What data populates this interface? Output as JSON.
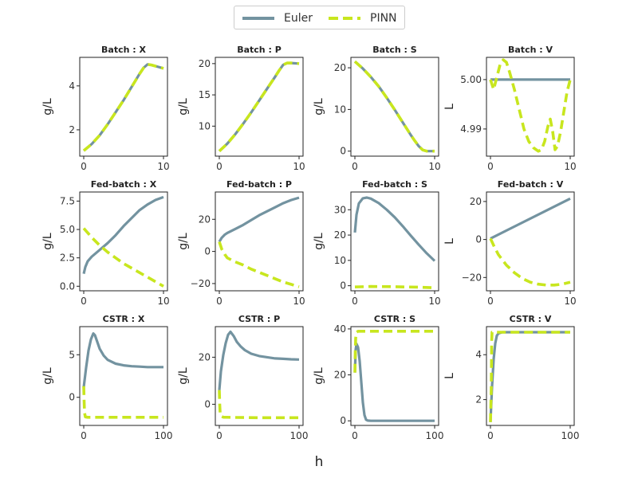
{
  "figure": {
    "xlabel": "h",
    "legend": {
      "placement": "top-center",
      "entries": [
        "Euler",
        "PINN"
      ]
    }
  },
  "colors": {
    "euler": "#7393a0",
    "pinn": "#c8e61e"
  },
  "chart_data": [
    {
      "type": "line",
      "title": "Batch : X",
      "ylabel": "g/L",
      "xlim": [
        -0.5,
        10.5
      ],
      "ylim": [
        0.8,
        5.3
      ],
      "xticks": [
        0,
        10
      ],
      "yticks": [
        2,
        4
      ],
      "series": [
        {
          "name": "Euler",
          "x": [
            0,
            1,
            2,
            3,
            4,
            5,
            6,
            7,
            7.5,
            8,
            8.5,
            9,
            10
          ],
          "y": [
            1.05,
            1.35,
            1.75,
            2.25,
            2.8,
            3.35,
            3.95,
            4.55,
            4.82,
            4.98,
            4.95,
            4.9,
            4.8
          ]
        },
        {
          "name": "PINN",
          "x": [
            0,
            1,
            2,
            3,
            4,
            5,
            6,
            7,
            7.5,
            8,
            8.5,
            9,
            10
          ],
          "y": [
            1.05,
            1.35,
            1.75,
            2.25,
            2.8,
            3.35,
            3.95,
            4.55,
            4.82,
            4.98,
            4.95,
            4.9,
            4.8
          ]
        }
      ]
    },
    {
      "type": "line",
      "title": "Batch : P",
      "ylabel": "g/L",
      "xlim": [
        -0.5,
        10.5
      ],
      "ylim": [
        5.2,
        21
      ],
      "xticks": [
        0,
        10
      ],
      "yticks": [
        10,
        15,
        20
      ],
      "series": [
        {
          "name": "Euler",
          "x": [
            0,
            1,
            2,
            3,
            4,
            5,
            6,
            7,
            7.5,
            8,
            8.5,
            9,
            10
          ],
          "y": [
            6,
            7.2,
            8.7,
            10.4,
            12.2,
            14.1,
            16,
            17.9,
            18.9,
            19.8,
            20.1,
            20.1,
            20
          ]
        },
        {
          "name": "PINN",
          "x": [
            0,
            1,
            2,
            3,
            4,
            5,
            6,
            7,
            7.5,
            8,
            8.5,
            9,
            10
          ],
          "y": [
            6,
            7.2,
            8.7,
            10.4,
            12.2,
            14.1,
            16,
            17.9,
            18.9,
            19.8,
            20.1,
            20.1,
            20
          ]
        }
      ]
    },
    {
      "type": "line",
      "title": "Batch : S",
      "ylabel": "g/L",
      "xlim": [
        -0.5,
        10.5
      ],
      "ylim": [
        -1.2,
        22.5
      ],
      "xticks": [
        0,
        10
      ],
      "yticks": [
        0,
        10,
        20
      ],
      "series": [
        {
          "name": "Euler",
          "x": [
            0,
            1,
            2,
            3,
            4,
            5,
            6,
            7,
            7.5,
            8,
            8.5,
            9,
            10
          ],
          "y": [
            21.5,
            19.8,
            17.8,
            15.5,
            12.8,
            9.9,
            6.9,
            3.9,
            2.5,
            1.2,
            0.3,
            0,
            0
          ]
        },
        {
          "name": "PINN",
          "x": [
            0,
            1,
            2,
            3,
            4,
            5,
            6,
            7,
            7.5,
            8,
            8.5,
            9,
            10
          ],
          "y": [
            21.5,
            19.8,
            17.8,
            15.5,
            12.8,
            9.9,
            6.9,
            3.9,
            2.5,
            1.2,
            0.3,
            0,
            0
          ]
        }
      ]
    },
    {
      "type": "line",
      "title": "Batch : V",
      "ylabel": "L",
      "xlim": [
        -0.5,
        10.5
      ],
      "ylim": [
        4.9845,
        5.0045
      ],
      "xticks": [
        0,
        10
      ],
      "yticks": [
        4.99,
        5.0
      ],
      "series": [
        {
          "name": "Euler",
          "x": [
            0,
            10
          ],
          "y": [
            5.0,
            5.0
          ]
        },
        {
          "name": "PINN",
          "x": [
            0,
            0.4,
            0.8,
            1.2,
            1.6,
            2,
            2.4,
            3,
            3.6,
            4.2,
            4.8,
            5.4,
            6,
            6.4,
            6.8,
            7.2,
            7.5,
            7.8,
            8.1,
            8.4,
            8.8,
            9.2,
            9.6,
            10
          ],
          "y": [
            5.0,
            4.998,
            5.0005,
            5.003,
            5.004,
            5.0035,
            5.0015,
            4.998,
            4.994,
            4.99,
            4.9875,
            4.9862,
            4.9855,
            4.9858,
            4.9875,
            4.9905,
            4.992,
            4.9895,
            4.9858,
            4.9865,
            4.9895,
            4.9935,
            4.9975,
            5.0
          ]
        }
      ]
    },
    {
      "type": "line",
      "title": "Fed-batch : X",
      "ylabel": "g/L",
      "xlim": [
        -0.5,
        10.5
      ],
      "ylim": [
        -0.4,
        8.3
      ],
      "xticks": [
        0,
        10
      ],
      "yticks": [
        0.0,
        2.5,
        5.0,
        7.5
      ],
      "series": [
        {
          "name": "Euler",
          "x": [
            0,
            0.2,
            0.5,
            1,
            2,
            3,
            4,
            5,
            6,
            7,
            8,
            9,
            10
          ],
          "y": [
            1.1,
            1.7,
            2.2,
            2.6,
            3.2,
            3.8,
            4.5,
            5.3,
            6.0,
            6.7,
            7.2,
            7.6,
            7.85
          ]
        },
        {
          "name": "PINN",
          "x": [
            0,
            1,
            2,
            3,
            4,
            5,
            6,
            7,
            8,
            9,
            10
          ],
          "y": [
            5.1,
            4.3,
            3.6,
            3.0,
            2.5,
            2.0,
            1.6,
            1.2,
            0.8,
            0.4,
            0.0
          ]
        }
      ]
    },
    {
      "type": "line",
      "title": "Fed-batch : P",
      "ylabel": "g/L",
      "xlim": [
        -0.5,
        10.5
      ],
      "ylim": [
        -24.5,
        37
      ],
      "xticks": [
        0,
        10
      ],
      "yticks": [
        -20,
        0,
        20
      ],
      "series": [
        {
          "name": "Euler",
          "x": [
            0,
            0.3,
            0.7,
            1,
            2,
            3,
            4,
            5,
            6,
            7,
            8,
            9,
            10
          ],
          "y": [
            6,
            8.5,
            10.5,
            11.5,
            14,
            16.5,
            19.5,
            22.5,
            25,
            27.5,
            30,
            32,
            33.5
          ]
        },
        {
          "name": "PINN",
          "x": [
            0,
            0.3,
            0.7,
            1,
            2,
            3,
            4,
            5,
            6,
            7,
            8,
            9,
            10
          ],
          "y": [
            6,
            1.5,
            -2,
            -4,
            -6.5,
            -8.5,
            -11,
            -13,
            -15,
            -17,
            -19,
            -20.5,
            -22
          ]
        }
      ]
    },
    {
      "type": "line",
      "title": "Fed-batch : S",
      "ylabel": "g/L",
      "xlim": [
        -0.5,
        10.5
      ],
      "ylim": [
        -2,
        37
      ],
      "xticks": [
        0,
        10
      ],
      "yticks": [
        0,
        10,
        20,
        30
      ],
      "series": [
        {
          "name": "Euler",
          "x": [
            0,
            0.2,
            0.5,
            1,
            1.5,
            2,
            3,
            4,
            5,
            6,
            7,
            8,
            9,
            10
          ],
          "y": [
            21,
            28,
            32.5,
            34.5,
            34.8,
            34.4,
            32.6,
            30,
            27,
            23.5,
            19.8,
            16.2,
            12.8,
            9.8
          ]
        },
        {
          "name": "PINN",
          "x": [
            0,
            2,
            5,
            8,
            10
          ],
          "y": [
            -0.5,
            -0.3,
            -0.4,
            -0.6,
            -0.8
          ]
        }
      ]
    },
    {
      "type": "line",
      "title": "Fed-batch : V",
      "ylabel": "L",
      "xlim": [
        -0.5,
        10.5
      ],
      "ylim": [
        -27,
        25
      ],
      "xticks": [
        0,
        10
      ],
      "yticks": [
        -20,
        0,
        20
      ],
      "series": [
        {
          "name": "Euler",
          "x": [
            0,
            10
          ],
          "y": [
            0.5,
            21.5
          ]
        },
        {
          "name": "PINN",
          "x": [
            0,
            0.5,
            1,
            2,
            3,
            4,
            5,
            6,
            7,
            8,
            9,
            10
          ],
          "y": [
            0.5,
            -4,
            -8,
            -13.5,
            -17.5,
            -20.5,
            -22.5,
            -23.5,
            -24,
            -24,
            -23.5,
            -22.5
          ]
        }
      ]
    },
    {
      "type": "line",
      "title": "CSTR : X",
      "ylabel": "g/L",
      "xlim": [
        -5,
        105
      ],
      "ylim": [
        -3.3,
        8.3
      ],
      "xticks": [
        0,
        100
      ],
      "yticks": [
        0,
        5
      ],
      "series": [
        {
          "name": "Euler",
          "x": [
            0,
            3,
            6,
            9,
            12,
            14,
            17,
            20,
            25,
            30,
            40,
            50,
            60,
            70,
            80,
            90,
            100
          ],
          "y": [
            1.2,
            3.5,
            5.5,
            6.8,
            7.5,
            7.3,
            6.5,
            5.7,
            4.9,
            4.4,
            3.95,
            3.75,
            3.65,
            3.6,
            3.55,
            3.55,
            3.55
          ]
        },
        {
          "name": "PINN",
          "x": [
            0,
            0.5,
            1,
            2,
            5,
            20,
            50,
            100
          ],
          "y": [
            1.3,
            -0.5,
            -1.8,
            -2.3,
            -2.35,
            -2.35,
            -2.35,
            -2.35
          ]
        }
      ]
    },
    {
      "type": "line",
      "title": "CSTR : P",
      "ylabel": "g/L",
      "xlim": [
        -5,
        105
      ],
      "ylim": [
        -9,
        33
      ],
      "xticks": [
        0,
        100
      ],
      "yticks": [
        0,
        20
      ],
      "series": [
        {
          "name": "Euler",
          "x": [
            0,
            2,
            5,
            8,
            11,
            14,
            18,
            22,
            27,
            32,
            40,
            50,
            60,
            70,
            80,
            90,
            100
          ],
          "y": [
            6,
            14,
            21,
            26,
            29.5,
            30.8,
            29,
            26.5,
            24.5,
            23,
            21.5,
            20.5,
            20,
            19.5,
            19.3,
            19.1,
            19
          ]
        },
        {
          "name": "PINN",
          "x": [
            0,
            0.5,
            1,
            2,
            5,
            20,
            50,
            100
          ],
          "y": [
            6,
            0,
            -3.5,
            -5,
            -5.5,
            -5.6,
            -5.7,
            -5.7
          ]
        }
      ]
    },
    {
      "type": "line",
      "title": "CSTR : S",
      "ylabel": "g/L",
      "xlim": [
        -5,
        105
      ],
      "ylim": [
        -2,
        41
      ],
      "xticks": [
        0,
        100
      ],
      "yticks": [
        0,
        20,
        40
      ],
      "series": [
        {
          "name": "Euler",
          "x": [
            0,
            1,
            2,
            4,
            6,
            8,
            10,
            12,
            14,
            16,
            20,
            50,
            100
          ],
          "y": [
            21,
            31,
            33.5,
            32,
            26,
            17,
            8,
            2.5,
            0.5,
            0.1,
            0,
            0,
            0
          ]
        },
        {
          "name": "PINN",
          "x": [
            0,
            0.5,
            1,
            2,
            4,
            10,
            50,
            100
          ],
          "y": [
            21,
            30,
            36,
            38.5,
            39,
            39,
            39,
            39
          ]
        }
      ]
    },
    {
      "type": "line",
      "title": "CSTR : V",
      "ylabel": "L",
      "xlim": [
        -5,
        105
      ],
      "ylim": [
        0.85,
        5.25
      ],
      "xticks": [
        0,
        100
      ],
      "yticks": [
        2,
        4
      ],
      "series": [
        {
          "name": "Euler",
          "x": [
            0,
            2,
            4,
            6,
            8,
            10,
            15,
            20,
            100
          ],
          "y": [
            1.0,
            2.6,
            3.8,
            4.5,
            4.85,
            4.95,
            5.0,
            5.0,
            5.0
          ]
        },
        {
          "name": "PINN",
          "x": [
            0,
            1,
            1.5,
            2,
            3,
            5,
            100
          ],
          "y": [
            1.0,
            2.5,
            4.6,
            5.0,
            5.0,
            5.0,
            5.0
          ]
        }
      ]
    }
  ]
}
